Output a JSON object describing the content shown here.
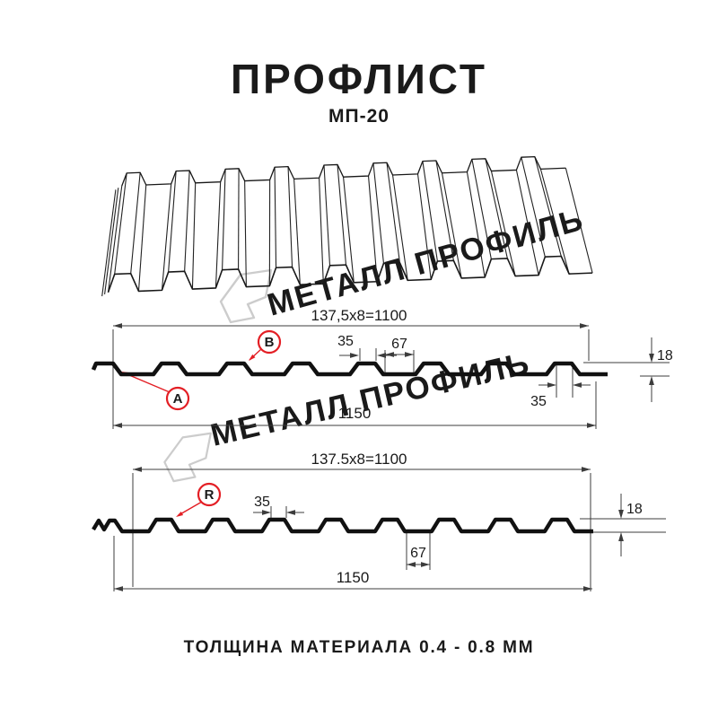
{
  "title": "ПРОФЛИСТ",
  "subtitle": "МП-20",
  "watermark": {
    "text": "МЕТАЛЛ ПРОФИЛЬ"
  },
  "footer": "ТОЛЩИНА МАТЕРИАЛА 0.4 - 0.8 ММ",
  "section1": {
    "pitch_dim": "137,5x8=1100",
    "rib_top_width": "35",
    "valley_width": "67",
    "height": "18",
    "rib_bottom_width": "35",
    "total_width": "1150",
    "label_a": "A",
    "label_b": "B"
  },
  "section2": {
    "pitch_dim": "137.5x8=1100",
    "rib_top_width": "35",
    "valley_width": "67",
    "height": "18",
    "total_width": "1150",
    "label_r": "R"
  },
  "colors": {
    "accent_red": "#e31e24",
    "line": "#111111",
    "dim_line": "#3c3c3c",
    "watermark": "#cccccc"
  }
}
